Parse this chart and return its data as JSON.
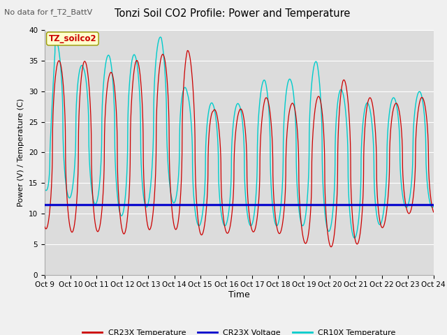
{
  "title": "Tonzi Soil CO2 Profile: Power and Temperature",
  "subtitle": "No data for f_T2_BattV",
  "ylabel": "Power (V) / Temperature (C)",
  "xlabel": "Time",
  "ylim": [
    0,
    40
  ],
  "fig_bg_color": "#f0f0f0",
  "plot_bg_color": "#dcdcdc",
  "annotation_text": "TZ_soilco2",
  "x_tick_labels": [
    "Oct 9",
    "Oct 10",
    "Oct 11",
    "Oct 12",
    "Oct 13",
    "Oct 14",
    "Oct 15",
    "Oct 16",
    "Oct 17",
    "Oct 18",
    "Oct 19",
    "Oct 20",
    "Oct 21",
    "Oct 22",
    "Oct 23",
    "Oct 24"
  ],
  "voltage_value": 11.4,
  "cr23x_color": "#cc0000",
  "cr10x_color": "#00cccc",
  "voltage_color": "#0000cc",
  "grid_color": "#ffffff",
  "cr23x_peaks": [
    35,
    35,
    33,
    35,
    36,
    37,
    27,
    27,
    29,
    28,
    29,
    32,
    29,
    28,
    29
  ],
  "cr23x_valleys": [
    7.5,
    6.5,
    7.5,
    6,
    8.5,
    6.5,
    6.5,
    7,
    7,
    6.5,
    4,
    5,
    5,
    10,
    10
  ],
  "cr10x_peaks": [
    38,
    34,
    36,
    36,
    39,
    30,
    28,
    28,
    32,
    32,
    35,
    30,
    28,
    29,
    30
  ],
  "cr10x_valleys": [
    13,
    12,
    11,
    8,
    15,
    8,
    8,
    8,
    8,
    8,
    8,
    6,
    6,
    11,
    11
  ]
}
